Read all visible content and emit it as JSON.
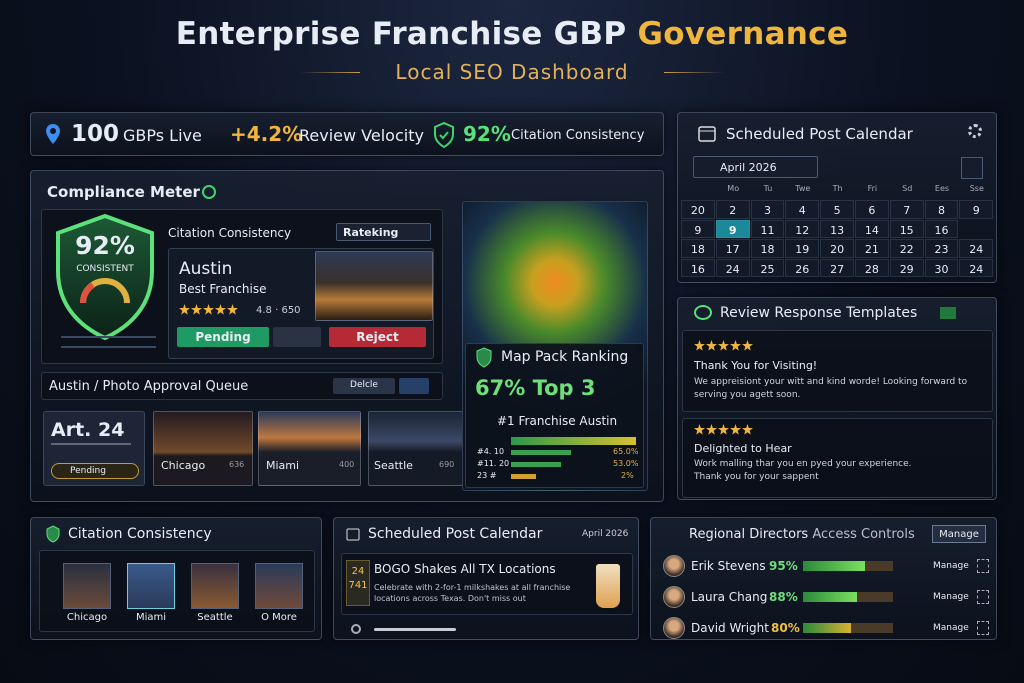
{
  "header": {
    "title": "Enterprise Franchise GBP",
    "title_highlight": "Governance",
    "subtitle": "Local SEO Dashboard"
  },
  "kpis": [
    {
      "value": "100",
      "label": "GBPs Live"
    },
    {
      "value": "+4.2%",
      "label": "Review Velocity"
    },
    {
      "value": "92%",
      "label": "Citation Consistency"
    }
  ],
  "compliance": {
    "title": "Compliance Meter",
    "score": "92%",
    "status": "CONSISTENT",
    "section": "Citation Consistency",
    "dropdown": "Rateking",
    "listing": {
      "name": "Austin",
      "category": "Best Franchise",
      "rating": "4.8",
      "reviews": "650"
    },
    "actions": [
      "Pending",
      "Reject"
    ],
    "queue": {
      "title": "Austin / Photo Approval Queue",
      "action": "Delcle"
    },
    "items": [
      {
        "label": "Art. 24",
        "status": "Pending"
      },
      {
        "label": "Chicago",
        "count": "636"
      },
      {
        "label": "Miami",
        "count": "400"
      },
      {
        "label": "Seattle",
        "count": "690"
      }
    ]
  },
  "map_pack": {
    "title": "Map Pack Ranking",
    "headline": "67% Top 3",
    "leader": "#1 Franchise Austin",
    "rows": [
      {
        "label": "#4. 10",
        "pct": "65.0%"
      },
      {
        "label": "#11. 20",
        "pct": "53.0%"
      },
      {
        "label": "23 #",
        "pct": "2%"
      }
    ]
  },
  "calendar": {
    "title": "Scheduled Post Calendar",
    "month": "April 2026",
    "weekdays": [
      "Mo",
      "Tu",
      "Twe",
      "Th",
      "Fri",
      "Sd",
      "Ees",
      "Sse"
    ],
    "weeks": [
      [
        "20",
        "2",
        "3",
        "4",
        "5",
        "6",
        "7",
        "8",
        "9"
      ],
      [
        "9",
        "9",
        "11",
        "12",
        "13",
        "14",
        "15",
        "16"
      ],
      [
        "18",
        "17",
        "18",
        "19",
        "20",
        "21",
        "22",
        "23",
        "24"
      ],
      [
        "16",
        "24",
        "25",
        "26",
        "27",
        "28",
        "29",
        "30",
        "24"
      ]
    ]
  },
  "reviews": {
    "title": "Review Response Templates",
    "templates": [
      {
        "title": "Thank You for Visiting!",
        "body": "We appreisiont your witt and kind worde! Looking forward to serving you agett soon."
      },
      {
        "title": "Delighted to Hear",
        "body": "Work malling thar you en pyed your experience. Thank you for your sappent"
      }
    ]
  },
  "citations": {
    "title": "Citation Consistency",
    "locations": [
      "Chicago",
      "Miami",
      "Seattle",
      "O More"
    ]
  },
  "post": {
    "title": "Scheduled Post Calendar",
    "month": "April 2026",
    "date_day": "24",
    "date_code": "741",
    "headline": "BOGO Shakes All TX Locations",
    "body": "Celebrate with 2-for-1 milkshakes at all franchise locations across Texas. Don't miss out"
  },
  "directors": {
    "title": "Regional Directors",
    "title_suffix": "Access Controls",
    "action": "Manage",
    "people": [
      {
        "name": "Erik Stevens",
        "access": "95%",
        "action": "Manage"
      },
      {
        "name": "Laura Chang",
        "access": "88%",
        "action": "Manage"
      },
      {
        "name": "David Wright",
        "access": "80%",
        "action": "Manage"
      }
    ]
  }
}
